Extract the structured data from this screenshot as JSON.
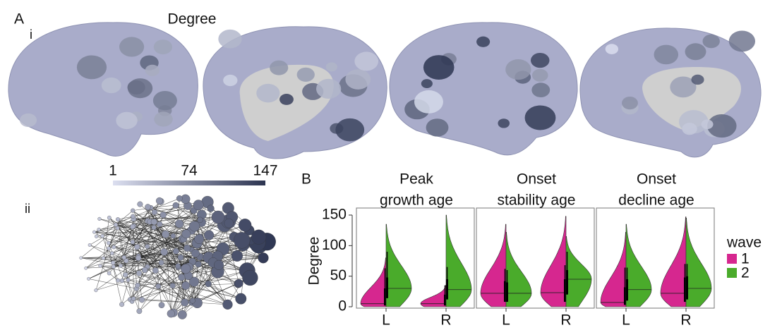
{
  "panel_a": {
    "label": "A",
    "sub_i": "i",
    "title": "Degree",
    "sub_ii": "ii",
    "colorbar": {
      "ticks": [
        1,
        74,
        147
      ],
      "low_color": "#dcdff0",
      "high_color": "#2c3450"
    }
  },
  "panel_b_label": "B",
  "chart_data": [
    {
      "type": "violin",
      "title": [
        "Peak",
        "growth age"
      ],
      "ylabel": "Degree",
      "legend_title": "wave",
      "categories": [
        "L",
        "R"
      ],
      "ylim": [
        0,
        150
      ],
      "yticks": [
        0,
        50,
        100,
        150
      ],
      "series": [
        {
          "name": "1",
          "color": "#d6278f",
          "values": [
            {
              "median": 5,
              "q1": 2,
              "q3": 30,
              "whisker": 63,
              "max": 80
            },
            {
              "median": 5,
              "q1": 2,
              "q3": 20,
              "whisker": 35,
              "max": 35
            }
          ]
        },
        {
          "name": "2",
          "color": "#4aab2b",
          "values": [
            {
              "median": 30,
              "q1": 14,
              "q3": 48,
              "whisker": 90,
              "max": 135
            },
            {
              "median": 28,
              "q1": 12,
              "q3": 45,
              "whisker": 65,
              "max": 150
            }
          ]
        }
      ]
    },
    {
      "type": "violin",
      "title": [
        "Onset",
        "stability age"
      ],
      "categories": [
        "L",
        "R"
      ],
      "ylim": [
        0,
        150
      ],
      "series": [
        {
          "name": "1",
          "color": "#d6278f",
          "values": [
            {
              "median": 22,
              "q1": 8,
              "q3": 42,
              "whisker": 62,
              "max": 135
            },
            {
              "median": 23,
              "q1": 8,
              "q3": 45,
              "whisker": 68,
              "max": 148
            }
          ]
        },
        {
          "name": "2",
          "color": "#4aab2b",
          "values": [
            {
              "median": 22,
              "q1": 8,
              "q3": 40,
              "whisker": 60,
              "max": 122
            },
            {
              "median": 45,
              "q1": 20,
              "q3": 60,
              "whisker": 90,
              "max": 115
            }
          ]
        }
      ]
    },
    {
      "type": "violin",
      "title": [
        "Onset",
        "decline age"
      ],
      "categories": [
        "L",
        "R"
      ],
      "ylim": [
        0,
        150
      ],
      "series": [
        {
          "name": "1",
          "color": "#d6278f",
          "values": [
            {
              "median": 7,
              "q1": 3,
              "q3": 32,
              "whisker": 64,
              "max": 122
            },
            {
              "median": 22,
              "q1": 8,
              "q3": 48,
              "whisker": 70,
              "max": 147
            }
          ]
        },
        {
          "name": "2",
          "color": "#4aab2b",
          "values": [
            {
              "median": 28,
              "q1": 10,
              "q3": 45,
              "whisker": 64,
              "max": 135
            },
            {
              "median": 30,
              "q1": 12,
              "q3": 50,
              "whisker": 70,
              "max": 145
            }
          ]
        }
      ]
    }
  ]
}
